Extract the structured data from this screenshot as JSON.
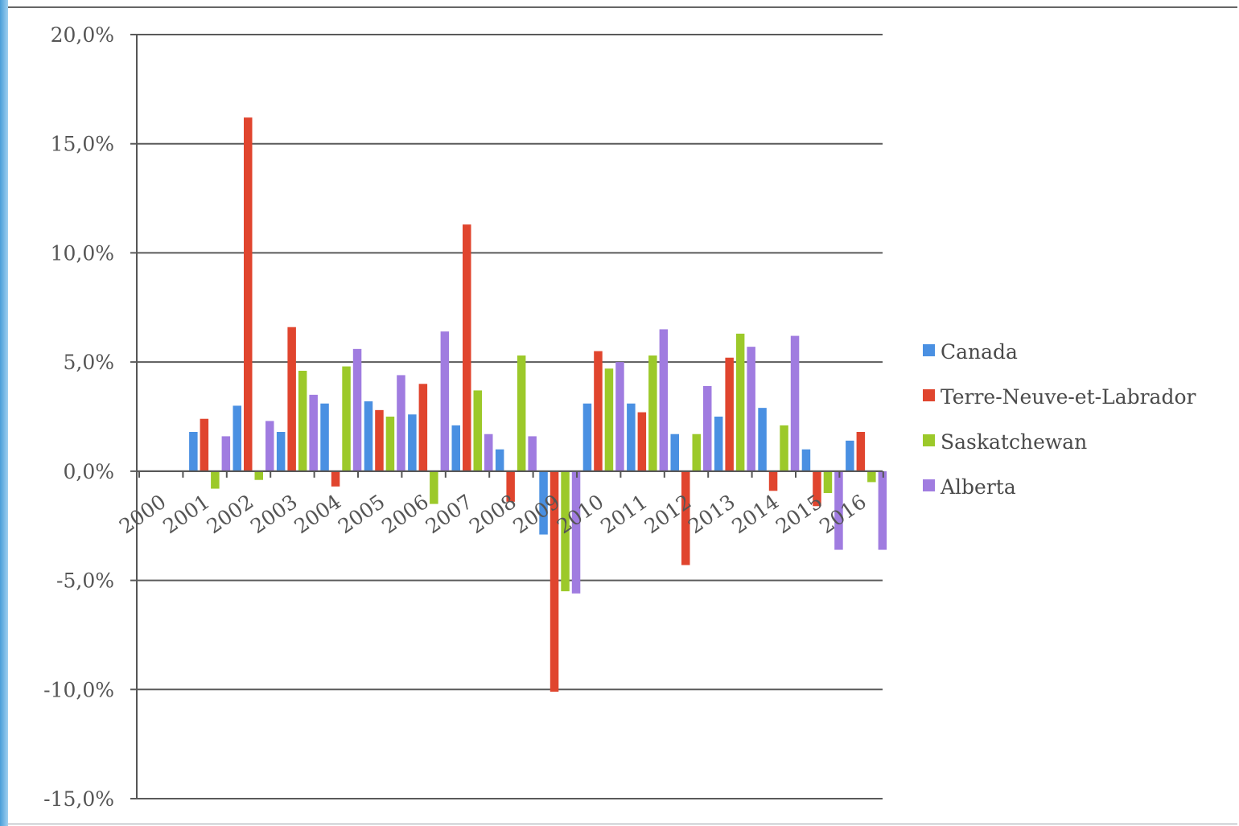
{
  "chart_data": {
    "type": "bar",
    "title": "",
    "xlabel": "",
    "ylabel": "",
    "ylim": [
      -15,
      20
    ],
    "yticks": [
      20,
      15,
      10,
      5,
      0,
      -5,
      -10,
      -15
    ],
    "ytick_labels": [
      "20,0%",
      "15,0%",
      "10,0%",
      "5,0%",
      "0,0%",
      "-5,0%",
      "-10,0%",
      "-15,0%"
    ],
    "grid": true,
    "legend_position": "right",
    "categories": [
      "2000",
      "2001",
      "2002",
      "2003",
      "2004",
      "2005",
      "2006",
      "2007",
      "2008",
      "2009",
      "2010",
      "2011",
      "2012",
      "2013",
      "2014",
      "2015",
      "2016"
    ],
    "series": [
      {
        "name": "Canada",
        "color": "#4a90e2",
        "values": [
          0,
          1.8,
          3.0,
          1.8,
          3.1,
          3.2,
          2.6,
          2.1,
          1.0,
          -2.9,
          3.1,
          3.1,
          1.7,
          2.5,
          2.9,
          1.0,
          1.4
        ]
      },
      {
        "name": "Terre-Neuve-et-Labrador",
        "color": "#e0452e",
        "values": [
          0,
          2.4,
          16.2,
          6.6,
          -0.7,
          2.8,
          4.0,
          11.3,
          -1.4,
          -10.1,
          5.5,
          2.7,
          -4.3,
          5.2,
          -0.9,
          -1.6,
          1.8
        ]
      },
      {
        "name": "Saskatchewan",
        "color": "#9cc92a",
        "values": [
          0,
          -0.8,
          -0.4,
          4.6,
          4.8,
          2.5,
          -1.5,
          3.7,
          5.3,
          -5.5,
          4.7,
          5.3,
          1.7,
          6.3,
          2.1,
          -1.0,
          -0.5
        ]
      },
      {
        "name": "Alberta",
        "color": "#a07ce0",
        "values": [
          0,
          1.6,
          2.3,
          3.5,
          5.6,
          4.4,
          6.4,
          1.7,
          1.6,
          -5.6,
          5.0,
          6.5,
          3.9,
          5.7,
          6.2,
          -3.6,
          -3.6
        ]
      }
    ]
  }
}
